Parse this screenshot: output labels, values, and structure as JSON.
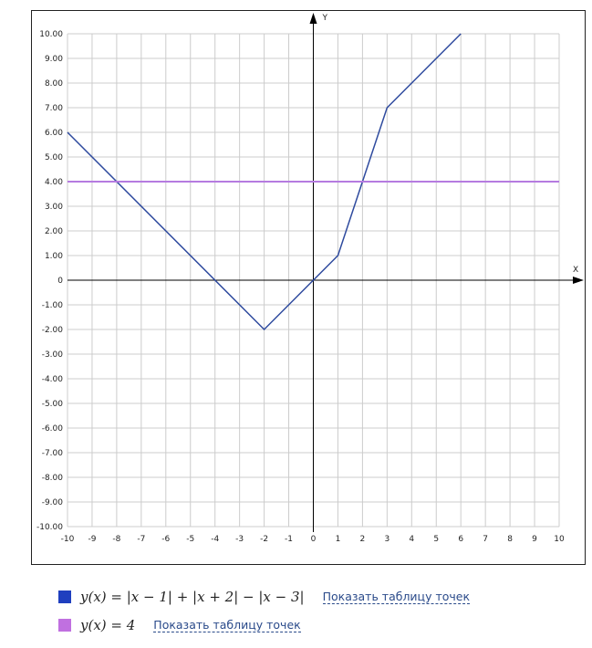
{
  "chart_data": {
    "type": "line",
    "xlabel": "X",
    "ylabel": "Y",
    "xlim": [
      -10,
      10
    ],
    "ylim": [
      -10,
      10
    ],
    "grid": true,
    "x_ticks": [
      "-10",
      "-9",
      "-8",
      "-7",
      "-6",
      "-5",
      "-4",
      "-3",
      "-2",
      "-1",
      "0",
      "1",
      "2",
      "3",
      "4",
      "5",
      "6",
      "7",
      "8",
      "9",
      "10"
    ],
    "y_ticks": [
      "10.00",
      "9.00",
      "8.00",
      "7.00",
      "6.00",
      "5.00",
      "4.00",
      "3.00",
      "2.00",
      "1.00",
      "0",
      "-1.00",
      "-2.00",
      "-3.00",
      "-4.00",
      "-5.00",
      "-6.00",
      "-7.00",
      "-8.00",
      "-9.00",
      "-10.00"
    ],
    "series": [
      {
        "name": "y(x) = |x − 1| + |x + 2| − |x − 3|",
        "color": "#2e4a9e",
        "swatch": "#1f3fbf",
        "x": [
          -10,
          -2,
          1,
          3,
          6
        ],
        "y": [
          6,
          -2,
          1,
          7,
          10
        ]
      },
      {
        "name": "y(x) = 4",
        "color": "#b57be0",
        "swatch": "#c070e0",
        "x": [
          -10,
          10
        ],
        "y": [
          4,
          4
        ]
      }
    ],
    "legend_position": "bottom-left"
  },
  "legend": {
    "link_label": "Показать таблицу точек"
  }
}
